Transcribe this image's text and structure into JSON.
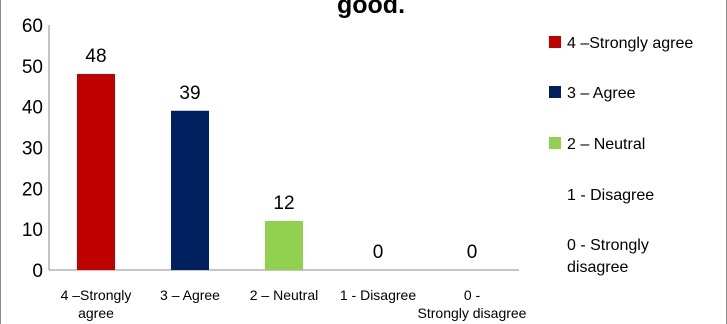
{
  "chart_data": {
    "type": "bar",
    "title": "good.",
    "categories": [
      "4 –Strongly agree",
      "3 – Agree",
      "2 – Neutral",
      "1 - Disagree",
      "0 - Strongly disagree"
    ],
    "values": [
      48,
      39,
      12,
      0,
      0
    ],
    "colors": [
      "#c00000",
      "#002060",
      "#92d050",
      "#ffffff",
      "#ffffff"
    ],
    "ylim": [
      0,
      60
    ],
    "yticks": [
      0,
      10,
      20,
      30,
      40,
      50,
      60
    ],
    "xlabel": "",
    "ylabel": "",
    "grid": false,
    "legend_position": "right",
    "legend": [
      {
        "label": "4 –Strongly agree",
        "color": "#c00000"
      },
      {
        "label": "3 – Agree",
        "color": "#002060"
      },
      {
        "label": "2 – Neutral",
        "color": "#92d050"
      },
      {
        "label": "1 - Disagree",
        "color": "#ffffff"
      },
      {
        "label": "0 - Strongly disagree",
        "color": "#ffffff"
      }
    ]
  }
}
